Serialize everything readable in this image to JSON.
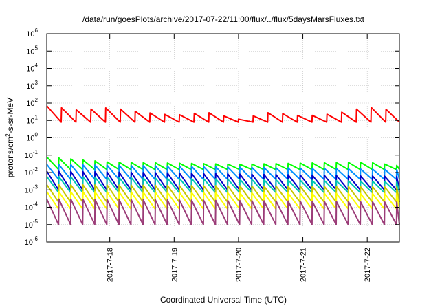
{
  "chart_data": {
    "type": "line",
    "title": "/data/run/goesPlots/archive/2017-07-22/11:00/flux/../flux/5daysMarsFluxes.txt",
    "xlabel": "Coordinated Universal Time (UTC)",
    "ylabel_prefix": "protons/cm",
    "ylabel_sup": "2",
    "ylabel_suffix": "-s-sr-MeV",
    "x_range": [
      "2017-07-17T00:30",
      "2017-07-22T12:00"
    ],
    "x_ticks": [
      "2017-7-18",
      "2017-7-19",
      "2017-7-20",
      "2017-7-21",
      "2017-7-22"
    ],
    "y_scale": "log",
    "ylim": [
      1e-06,
      1000000.0
    ],
    "y_tick_exponents": [
      "-6",
      "-5",
      "-4",
      "-3",
      "-2",
      "-1",
      "0",
      "1",
      "2",
      "3",
      "4",
      "5",
      "6"
    ],
    "y_tick_base": "10",
    "grid": true,
    "series": [
      {
        "color": "#ff0000",
        "low": 8,
        "high": 80,
        "sawtooth_period_hours": 5.5,
        "x": [
          "2017-07-17T00:30",
          "2017-07-17T12:00",
          "2017-07-18T00:00",
          "2017-07-18T12:00",
          "2017-07-19T00:00",
          "2017-07-19T12:00",
          "2017-07-20T00:00",
          "2017-07-20T12:00",
          "2017-07-21T00:00",
          "2017-07-21T12:00",
          "2017-07-22T00:00",
          "2017-07-22T12:00"
        ],
        "y": [
          70,
          40,
          55,
          30,
          20,
          30,
          12,
          30,
          18,
          25,
          60,
          35
        ]
      },
      {
        "color": "#00ff00",
        "low": 0.015,
        "high": 0.08,
        "sawtooth_period_hours": 4.5,
        "x": [
          "2017-07-17T00:30",
          "2017-07-18T00:00",
          "2017-07-19T00:00",
          "2017-07-20T00:00",
          "2017-07-21T00:00",
          "2017-07-22T00:00",
          "2017-07-22T12:00"
        ],
        "y": [
          0.08,
          0.04,
          0.035,
          0.03,
          0.035,
          0.04,
          0.025
        ]
      },
      {
        "color": "#0090ff",
        "low": 0.004,
        "high": 0.03,
        "sawtooth_period_hours": 4.5,
        "x": [
          "2017-07-17T00:30",
          "2017-07-22T12:00"
        ],
        "y": [
          0.03,
          0.015
        ]
      },
      {
        "color": "#0000c8",
        "low": 0.001,
        "high": 0.012,
        "sawtooth_period_hours": 4.5,
        "x": [
          "2017-07-17T00:30",
          "2017-07-22T12:00"
        ],
        "y": [
          0.012,
          0.006
        ]
      },
      {
        "color": "#00c8b4",
        "low": 0.0007,
        "high": 0.006,
        "sawtooth_period_hours": 4.5,
        "x": [
          "2017-07-17T00:30",
          "2017-07-22T12:00"
        ],
        "y": [
          0.006,
          0.003
        ]
      },
      {
        "color": "#c8c800",
        "low": 0.0002,
        "high": 0.002,
        "sawtooth_period_hours": 4.5,
        "x": [
          "2017-07-17T00:30",
          "2017-07-22T12:00"
        ],
        "y": [
          0.002,
          0.0015
        ]
      },
      {
        "color": "#ffff00",
        "low": 8e-05,
        "high": 0.0008,
        "sawtooth_period_hours": 4.5,
        "x": [
          "2017-07-17T00:30",
          "2017-07-22T12:00"
        ],
        "y": [
          0.0008,
          0.0006
        ]
      },
      {
        "color": "#9b3c78",
        "low": 1e-05,
        "high": 0.0003,
        "sawtooth_period_hours": 4.5,
        "x": [
          "2017-07-17T00:30",
          "2017-07-22T12:00"
        ],
        "y": [
          0.0003,
          0.0002
        ]
      }
    ]
  }
}
